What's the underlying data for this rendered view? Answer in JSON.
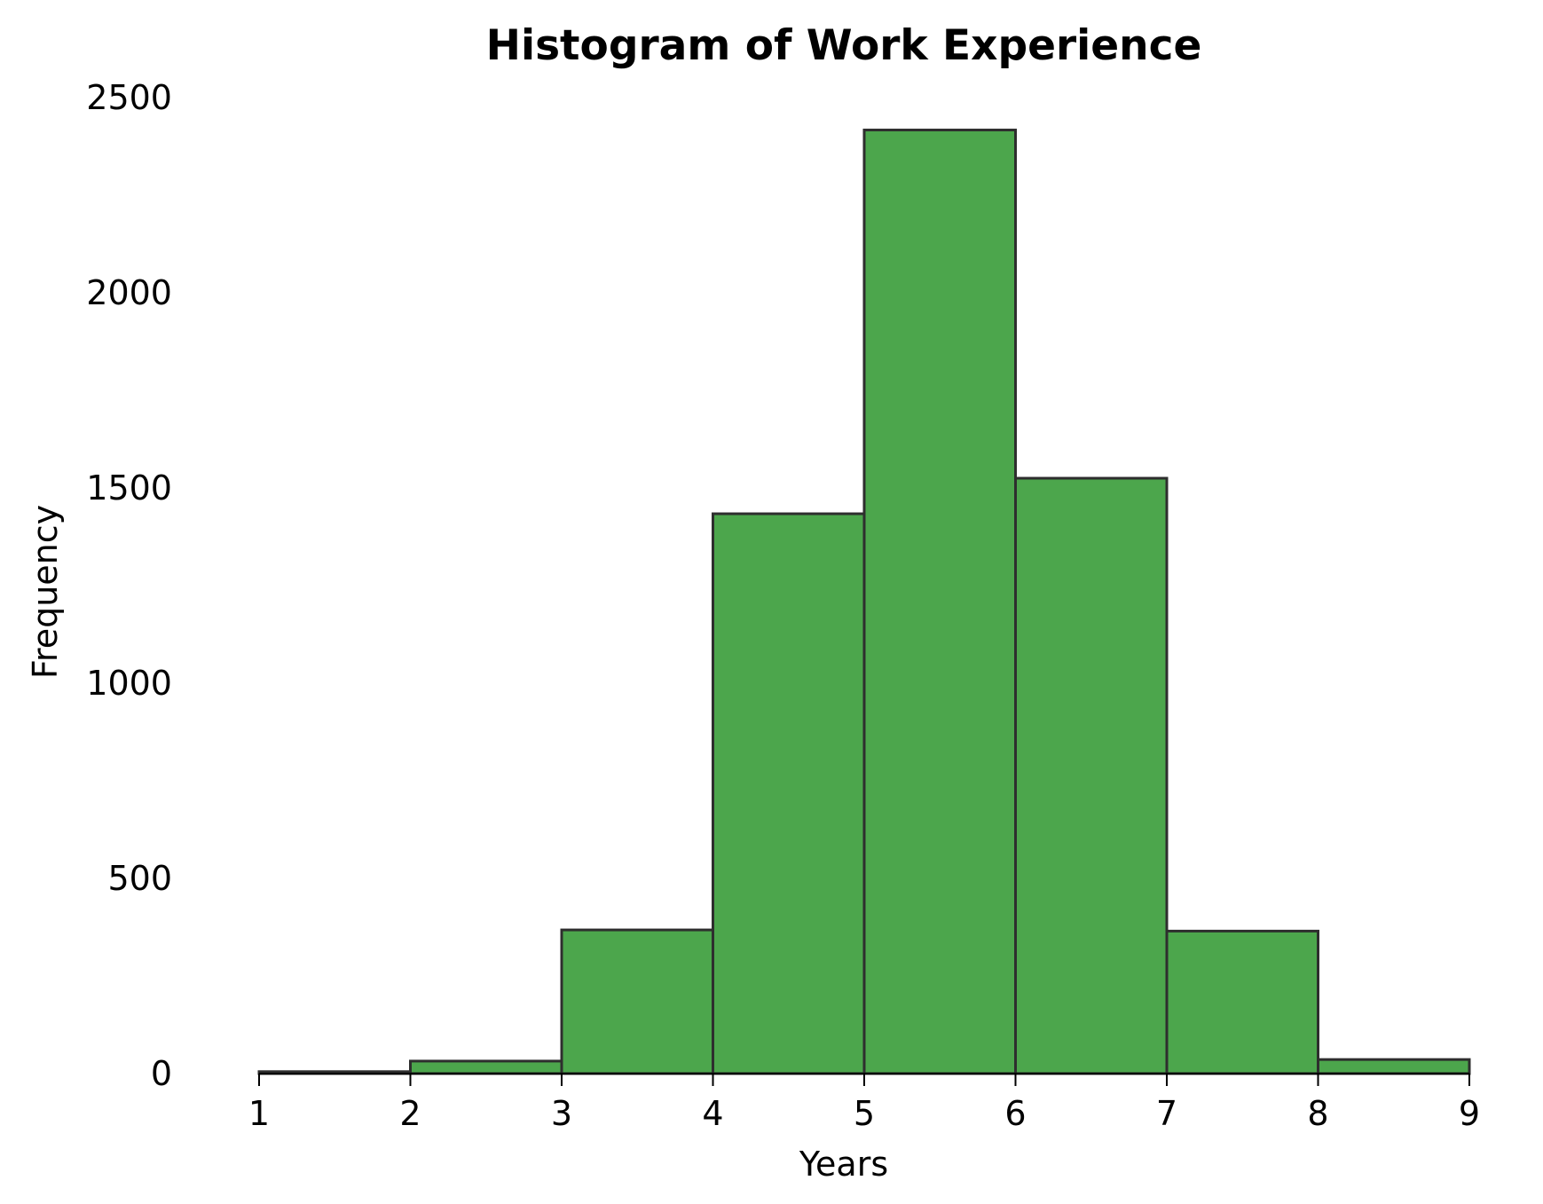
{
  "chart_data": {
    "type": "bar",
    "title": "Histogram of Work Experience",
    "xlabel": "Years",
    "ylabel": "Frequency",
    "bins": [
      {
        "start": 1,
        "end": 2,
        "value": 5
      },
      {
        "start": 2,
        "end": 3,
        "value": 32
      },
      {
        "start": 3,
        "end": 4,
        "value": 368
      },
      {
        "start": 4,
        "end": 5,
        "value": 1434
      },
      {
        "start": 5,
        "end": 6,
        "value": 2417
      },
      {
        "start": 6,
        "end": 7,
        "value": 1525
      },
      {
        "start": 7,
        "end": 8,
        "value": 365
      },
      {
        "start": 8,
        "end": 9,
        "value": 36
      }
    ],
    "xlim": [
      1,
      9
    ],
    "ylim": [
      0,
      2500
    ],
    "x_ticks": [
      "1",
      "2",
      "3",
      "4",
      "5",
      "6",
      "7",
      "8",
      "9"
    ],
    "y_ticks": [
      "0",
      "500",
      "1000",
      "1500",
      "2000",
      "2500"
    ],
    "bar_color": "#4ca64c",
    "edge_color": "#2e2e2e",
    "grid": false,
    "legend": "none"
  }
}
